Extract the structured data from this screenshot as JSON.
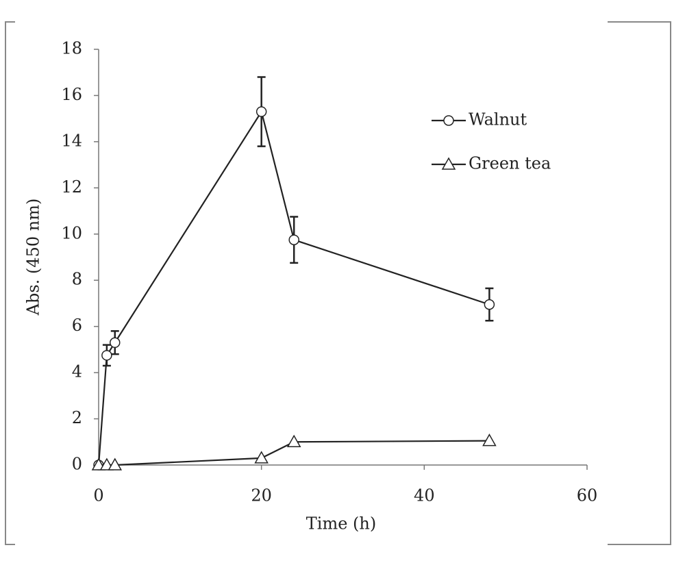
{
  "chart_data": {
    "type": "line",
    "x_label": "Time (h)",
    "y_label": "Abs. (450 nm)",
    "xlim": [
      0,
      60
    ],
    "xticks": [
      0,
      20,
      40,
      60
    ],
    "ylim": [
      0,
      18
    ],
    "yticks": [
      0,
      2,
      4,
      6,
      8,
      10,
      12,
      14,
      16,
      18
    ],
    "series": [
      {
        "name": "Walnut",
        "color": "#222222",
        "marker": "circle",
        "x": [
          0,
          1,
          2,
          20,
          24,
          48
        ],
        "values": [
          0,
          4.75,
          5.3,
          15.3,
          9.75,
          6.95
        ],
        "errors": [
          0,
          0.45,
          0.5,
          1.5,
          1.0,
          0.7
        ]
      },
      {
        "name": "Green tea",
        "color": "#222222",
        "marker": "triangle",
        "x": [
          0,
          1,
          2,
          20,
          24,
          48
        ],
        "values": [
          0,
          0,
          0,
          0.3,
          1.0,
          1.05
        ]
      }
    ]
  }
}
